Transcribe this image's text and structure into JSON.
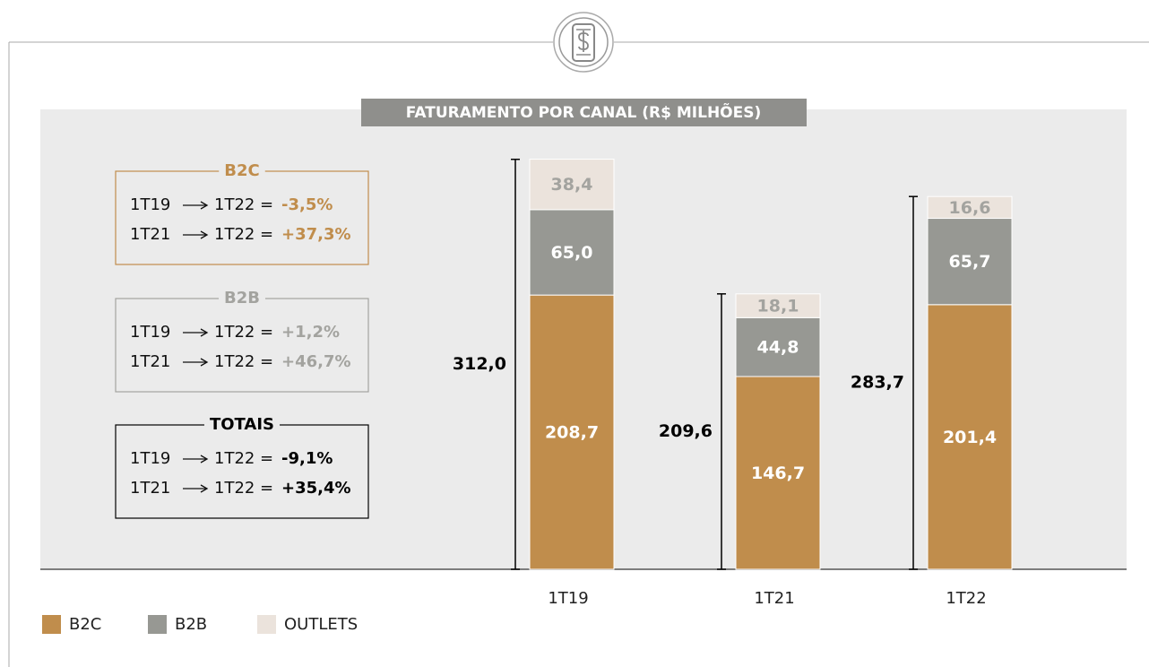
{
  "chart_data": {
    "type": "stacked_bar",
    "title": "FATURAMENTO POR CANAL (R$ MILHÕES)",
    "categories": [
      "1T19",
      "1T21",
      "1T22"
    ],
    "series": [
      {
        "name": "B2C",
        "color": "#c08d4c",
        "label_color": "#ffffff",
        "values": [
          208.7,
          146.7,
          201.4
        ],
        "value_labels": [
          "208,7",
          "146,7",
          "201,4"
        ]
      },
      {
        "name": "B2B",
        "color": "#979893",
        "label_color": "#ffffff",
        "values": [
          65.0,
          44.8,
          65.7
        ],
        "value_labels": [
          "65,0",
          "44,8",
          "65,7"
        ]
      },
      {
        "name": "OUTLETS",
        "color": "#ebe3dc",
        "label_color": "#a3a39f",
        "values": [
          38.4,
          18.1,
          16.6
        ],
        "value_labels": [
          "38,4",
          "18,1",
          "16,6"
        ]
      }
    ],
    "totals": [
      312.0,
      209.6,
      283.7
    ],
    "total_labels": [
      "312,0",
      "209,6",
      "283,7"
    ],
    "ylim": [
      0,
      320
    ]
  },
  "comparisons": [
    {
      "title": "B2C",
      "color": "#c08d4c",
      "rows": [
        {
          "from": "1T19",
          "to": "1T22",
          "change": "-3,5%"
        },
        {
          "from": "1T21",
          "to": "1T22",
          "change": "+37,3%"
        }
      ]
    },
    {
      "title": "B2B",
      "color": "#a3a39f",
      "rows": [
        {
          "from": "1T19",
          "to": "1T22",
          "change": "+1,2%"
        },
        {
          "from": "1T21",
          "to": "1T22",
          "change": "+46,7%"
        }
      ]
    },
    {
      "title": "TOTAIS",
      "color": "#000000",
      "rows": [
        {
          "from": "1T19",
          "to": "1T22",
          "change": "-9,1%"
        },
        {
          "from": "1T21",
          "to": "1T22",
          "change": "+35,4%"
        }
      ]
    }
  ]
}
